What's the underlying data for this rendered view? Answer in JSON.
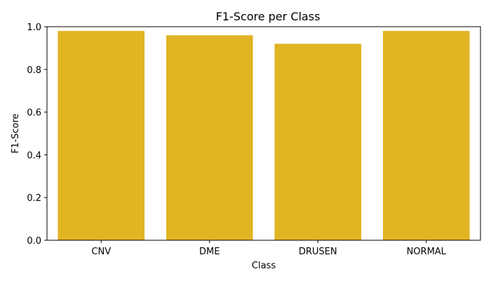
{
  "chart_data": {
    "type": "bar",
    "title": "F1-Score per Class",
    "xlabel": "Class",
    "ylabel": "F1-Score",
    "categories": [
      "CNV",
      "DME",
      "DRUSEN",
      "NORMAL"
    ],
    "values": [
      0.98,
      0.96,
      0.92,
      0.98
    ],
    "ylim": [
      0.0,
      1.0
    ],
    "yticks": [
      0.0,
      0.2,
      0.4,
      0.6,
      0.8,
      1.0
    ],
    "ytick_labels": [
      "0.0",
      "0.2",
      "0.4",
      "0.6",
      "0.8",
      "1.0"
    ],
    "grid": false,
    "legend": "none",
    "bar_color": "#e1b423"
  }
}
